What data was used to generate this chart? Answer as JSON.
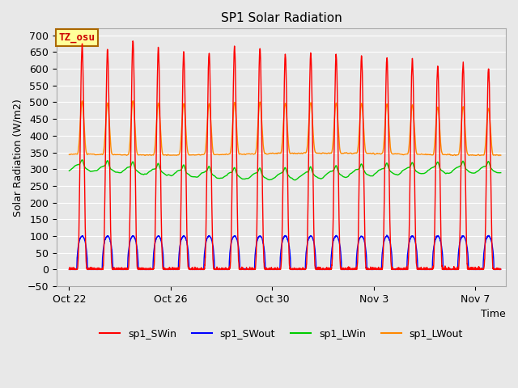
{
  "title": "SP1 Solar Radiation",
  "ylabel": "Solar Radiation (W/m2)",
  "xlabel": "Time",
  "ylim": [
    -50,
    720
  ],
  "background_color": "#e8e8e8",
  "plot_bg_color": "#e8e8e8",
  "grid_color": "#ffffff",
  "annotation_text": "TZ_osu",
  "annotation_color": "#cc0000",
  "annotation_bg": "#ffff99",
  "annotation_border": "#aa6600",
  "colors": {
    "sp1_SWin": "#ff0000",
    "sp1_SWout": "#0000ff",
    "sp1_LWin": "#00cc00",
    "sp1_LWout": "#ff8800"
  },
  "line_width": 1.0,
  "n_days": 17,
  "SWin_peaks": [
    670,
    655,
    685,
    660,
    650,
    648,
    665,
    660,
    643,
    648,
    642,
    638,
    633,
    630,
    607,
    615,
    600
  ],
  "SWout_flat": 100,
  "LWin_base": 305,
  "LWout_base": 345,
  "xtick_labels": [
    "Oct 22",
    "Oct 26",
    "Oct 30",
    "Nov 3",
    "Nov 7"
  ],
  "xtick_day_offsets": [
    0,
    4,
    8,
    12,
    16
  ],
  "figsize": [
    6.4,
    4.8
  ],
  "dpi": 100
}
